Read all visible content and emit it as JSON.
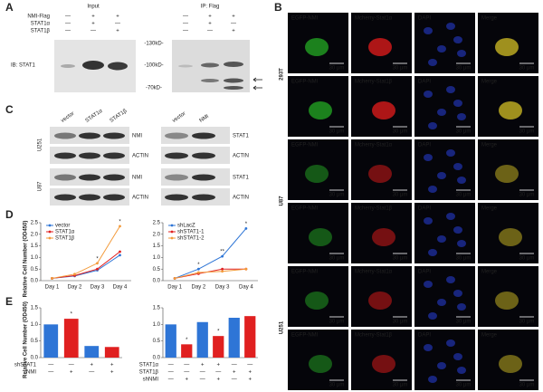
{
  "A": {
    "label": "A",
    "headers": [
      "Input",
      "IP: Flag"
    ],
    "rows": [
      {
        "name": "NMI-Flag",
        "input": [
          "—",
          "+",
          "+"
        ],
        "ip": [
          "—",
          "+",
          "+"
        ]
      },
      {
        "name": "STAT1α",
        "input": [
          "—",
          "+",
          "—"
        ],
        "ip": [
          "—",
          "+",
          "—"
        ]
      },
      {
        "name": "STAT1β",
        "input": [
          "—",
          "—",
          "+"
        ],
        "ip": [
          "—",
          "—",
          "+"
        ]
      }
    ],
    "ib": "IB: STAT1",
    "markers": [
      "-130kD-",
      "-100kD-",
      "-70kD-"
    ]
  },
  "B": {
    "label": "B",
    "cell_lines": [
      "293T",
      "U87",
      "U251"
    ],
    "rows": [
      [
        "EGFP-NMI",
        "Mcherry-Stat1α",
        "DAPI",
        "Merge"
      ],
      [
        "EGFP-NMI",
        "Mcherry-Stat1β",
        "DAPI",
        "Merge"
      ],
      [
        "EGFP-NMI",
        "Mcherry-Stat1α",
        "DAPI",
        "Merge"
      ],
      [
        "EGFP-NMI",
        "Mcherry-Stat1β",
        "DAPI",
        "Merge"
      ],
      [
        "EGFP-NMI",
        "Mcherry-Stat1α",
        "DAPI",
        "Merge"
      ],
      [
        "EGFP-NMI",
        "Mcherry-Stat1β",
        "DAPI",
        "Merge"
      ]
    ],
    "scale_bar": "30 μm"
  },
  "C": {
    "label": "C",
    "left_lanes": [
      "vector",
      "STAT1α",
      "STAT1β"
    ],
    "right_lanes": [
      "vector",
      "NMI"
    ],
    "cell_lines": [
      {
        "name": "U251",
        "left": [
          "NMI",
          "ACTIN"
        ],
        "right": [
          "STAT1",
          "ACTIN"
        ]
      },
      {
        "name": "U87",
        "left": [
          "NMI",
          "ACTIN"
        ],
        "right": [
          "STAT1",
          "ACTIN"
        ]
      }
    ]
  },
  "D": {
    "label": "D",
    "charts": [
      {
        "type": "line",
        "y_label": "Relative Cell Number (OD450)",
        "categories": [
          "Day 1",
          "Day 2",
          "Day 3",
          "Day 4"
        ],
        "ylim": [
          0,
          2.5
        ],
        "yticks": [
          {
            "value": 0,
            "label": "0.0"
          },
          {
            "value": 0.5,
            "label": "0.5"
          },
          {
            "value": 1,
            "label": "1.0"
          },
          {
            "value": 1.5,
            "label": "1.5"
          },
          {
            "value": 2,
            "label": "2.0"
          },
          {
            "value": 2.5,
            "label": "2.5"
          }
        ],
        "series": [
          {
            "name": "vector",
            "color": "#2e75d6",
            "values": [
              0.1,
              0.2,
              0.45,
              1.1
            ]
          },
          {
            "name": "STAT1α",
            "color": "#e02020",
            "values": [
              0.1,
              0.22,
              0.5,
              1.25
            ]
          },
          {
            "name": "STAT1β",
            "color": "#f39a3a",
            "values": [
              0.1,
              0.28,
              0.75,
              2.35
            ]
          }
        ],
        "annotations": [
          null,
          null,
          "*",
          "*"
        ]
      },
      {
        "type": "line",
        "categories": [
          "Day 1",
          "Day 2",
          "Day 3",
          "Day 4"
        ],
        "ylim": [
          0,
          2.5
        ],
        "yticks": [
          {
            "value": 0,
            "label": "0.0"
          },
          {
            "value": 0.5,
            "label": "0.5"
          },
          {
            "value": 1,
            "label": "1.0"
          },
          {
            "value": 1.5,
            "label": "1.5"
          },
          {
            "value": 2,
            "label": "2.0"
          },
          {
            "value": 2.5,
            "label": "2.5"
          }
        ],
        "series": [
          {
            "name": "shLacZ",
            "color": "#2e75d6",
            "values": [
              0.1,
              0.5,
              1.05,
              2.25
            ]
          },
          {
            "name": "shSTAT1-1",
            "color": "#e02020",
            "values": [
              0.1,
              0.3,
              0.5,
              0.5
            ]
          },
          {
            "name": "shSTAT1-2",
            "color": "#f39a3a",
            "values": [
              0.1,
              0.35,
              0.4,
              0.5
            ]
          }
        ],
        "annotations": [
          null,
          "*",
          "**",
          "*"
        ]
      }
    ]
  },
  "E": {
    "label": "E",
    "charts": [
      {
        "type": "bar",
        "y_label": "Relative Cell Number (OD450)",
        "ylim": [
          0,
          1.5
        ],
        "yticks": [
          {
            "value": 0,
            "label": "0.0"
          },
          {
            "value": 0.5,
            "label": "0.5"
          },
          {
            "value": 1,
            "label": "1.0"
          },
          {
            "value": 1.5,
            "label": "1.5"
          }
        ],
        "values": [
          1.0,
          1.17,
          0.35,
          0.32
        ],
        "colors": [
          "#2e75d6",
          "#e02020",
          "#2e75d6",
          "#e02020"
        ],
        "annotations": [
          null,
          "*",
          null,
          null
        ],
        "conditions": [
          {
            "name": "shSTAT1",
            "signs": [
              "—",
              "—",
              "+",
              "+"
            ]
          },
          {
            "name": "NMI",
            "signs": [
              "—",
              "+",
              "—",
              "+"
            ]
          }
        ]
      },
      {
        "type": "bar",
        "ylim": [
          0,
          1.5
        ],
        "yticks": [
          {
            "value": 0,
            "label": "0.0"
          },
          {
            "value": 0.5,
            "label": "0.5"
          },
          {
            "value": 1,
            "label": "1.0"
          },
          {
            "value": 1.5,
            "label": "1.5"
          }
        ],
        "values": [
          1.0,
          0.4,
          1.07,
          0.65,
          1.2,
          1.25
        ],
        "colors": [
          "#2e75d6",
          "#e02020",
          "#2e75d6",
          "#e02020",
          "#2e75d6",
          "#e02020"
        ],
        "annotations": [
          null,
          "*",
          null,
          "*",
          null,
          null
        ],
        "conditions": [
          {
            "name": "STAT1α",
            "signs": [
              "—",
              "—",
              "+",
              "+",
              "—",
              "—"
            ]
          },
          {
            "name": "STAT1β",
            "signs": [
              "—",
              "—",
              "—",
              "—",
              "+",
              "+"
            ]
          },
          {
            "name": "shNMI",
            "signs": [
              "—",
              "+",
              "—",
              "+",
              "—",
              "+"
            ]
          }
        ]
      }
    ]
  }
}
